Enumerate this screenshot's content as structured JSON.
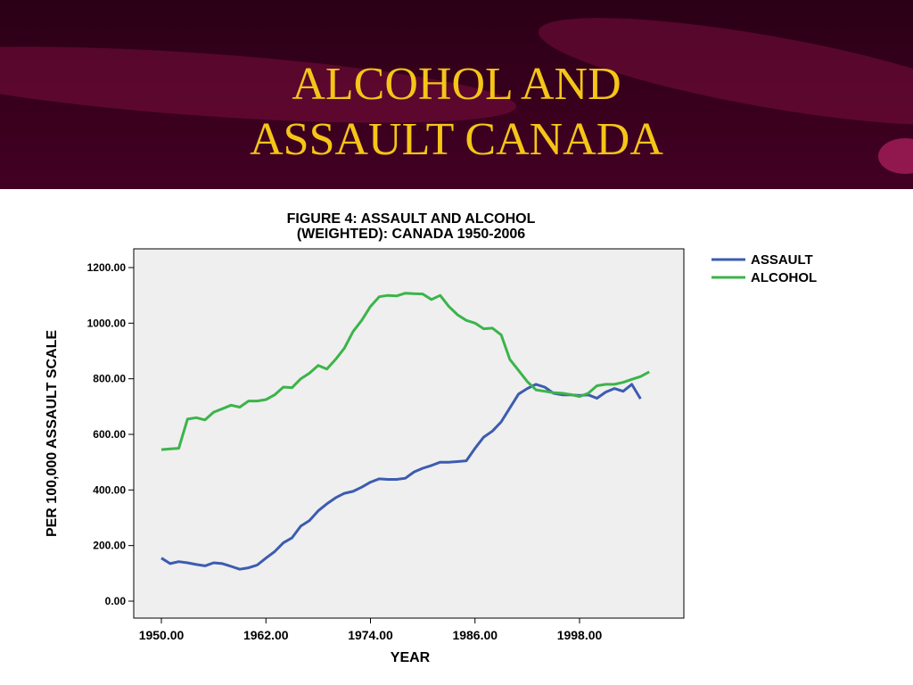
{
  "slide": {
    "title_line1": "ALCOHOL AND",
    "title_line2": "ASSAULT CANADA",
    "title_color": "#f5c518",
    "background_color": "#4e0029"
  },
  "chart_data": {
    "type": "line",
    "title_line1": "FIGURE 4: ASSAULT AND ALCOHOL",
    "title_line2": "(WEIGHTED): CANADA 1950-2006",
    "xlabel": "YEAR",
    "ylabel": "PER 100,000 ASSAULT SCALE",
    "xlim": [
      1950,
      2006
    ],
    "ylim": [
      0,
      1200
    ],
    "x_ticks": [
      1950,
      1962,
      1974,
      1986,
      1998
    ],
    "x_tick_labels": [
      "1950.00",
      "1962.00",
      "1974.00",
      "1986.00",
      "1998.00"
    ],
    "y_ticks": [
      0,
      200,
      400,
      600,
      800,
      1000,
      1200
    ],
    "y_tick_labels": [
      "0.00",
      "200.00",
      "400.00",
      "600.00",
      "800.00",
      "1000.00",
      "1200.00"
    ],
    "grid": false,
    "legend_position": "right",
    "plot_background": "#efefef",
    "x": [
      1950,
      1951,
      1952,
      1953,
      1954,
      1955,
      1956,
      1957,
      1958,
      1959,
      1960,
      1961,
      1962,
      1963,
      1964,
      1965,
      1966,
      1967,
      1968,
      1969,
      1970,
      1971,
      1972,
      1973,
      1974,
      1975,
      1976,
      1977,
      1978,
      1979,
      1980,
      1981,
      1982,
      1983,
      1984,
      1985,
      1986,
      1987,
      1988,
      1989,
      1990,
      1991,
      1992,
      1993,
      1994,
      1995,
      1996,
      1997,
      1998,
      1999,
      2000,
      2001,
      2002,
      2003,
      2004,
      2005,
      2006
    ],
    "series": [
      {
        "name": "ASSAULT",
        "color": "#3c5cb0",
        "values": [
          155,
          135,
          142,
          138,
          132,
          127,
          138,
          135,
          125,
          115,
          120,
          130,
          155,
          178,
          210,
          228,
          270,
          290,
          325,
          350,
          372,
          388,
          395,
          410,
          428,
          440,
          438,
          438,
          442,
          465,
          478,
          488,
          500,
          500,
          502,
          505,
          550,
          590,
          612,
          645,
          695,
          745,
          765,
          780,
          770,
          748,
          742,
          742,
          740,
          742,
          730,
          752,
          765,
          755,
          780,
          728,
          720
        ]
      },
      {
        "name": "ALCOHOL",
        "color": "#3cb44a",
        "values": [
          545,
          548,
          550,
          655,
          660,
          652,
          680,
          692,
          705,
          698,
          720,
          720,
          725,
          742,
          770,
          768,
          800,
          820,
          848,
          835,
          870,
          910,
          970,
          1010,
          1060,
          1095,
          1100,
          1098,
          1108,
          1106,
          1105,
          1085,
          1100,
          1060,
          1030,
          1010,
          1000,
          980,
          982,
          958,
          870,
          830,
          790,
          760,
          755,
          750,
          748,
          743,
          736,
          748,
          775,
          780,
          780,
          787,
          798,
          808,
          825
        ]
      }
    ],
    "series_end_years": [
      2005,
      2006
    ]
  }
}
